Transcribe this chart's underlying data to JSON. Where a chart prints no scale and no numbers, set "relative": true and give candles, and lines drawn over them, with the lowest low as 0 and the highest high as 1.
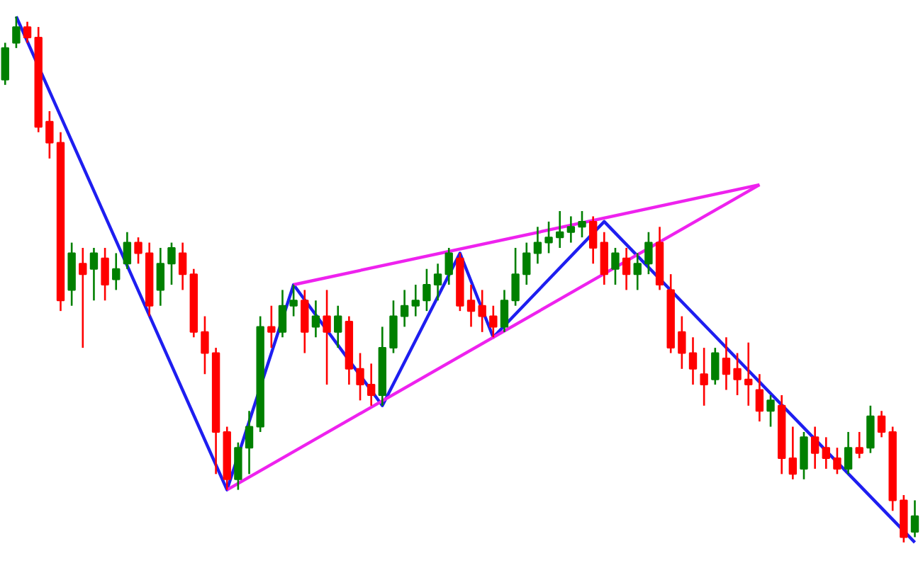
{
  "chart_data": {
    "type": "candlestick",
    "relative": true,
    "categories": [
      null,
      null,
      null,
      null,
      null,
      null,
      null,
      null,
      null,
      null,
      null,
      null,
      null,
      null,
      null,
      null,
      null,
      null,
      null,
      null,
      null,
      null,
      null,
      null,
      null,
      null,
      null,
      null,
      null,
      null,
      null,
      null,
      null,
      null,
      null,
      null,
      null,
      null,
      null,
      null,
      null,
      null,
      null,
      null,
      null,
      null,
      null,
      null,
      null,
      null,
      null,
      null,
      null,
      null,
      null,
      null,
      null,
      null,
      null,
      null,
      null,
      null,
      null,
      null,
      null,
      null,
      null,
      null,
      null,
      null,
      null,
      null,
      null,
      null,
      null,
      null,
      null,
      null,
      null,
      null,
      null,
      null,
      null
    ],
    "ohlc": [
      [
        0.88,
        0.95,
        0.87,
        0.94
      ],
      [
        0.95,
        1.0,
        0.94,
        0.98
      ],
      [
        0.98,
        0.99,
        0.95,
        0.96
      ],
      [
        0.96,
        0.98,
        0.78,
        0.79
      ],
      [
        0.8,
        0.82,
        0.73,
        0.76
      ],
      [
        0.76,
        0.78,
        0.44,
        0.46
      ],
      [
        0.48,
        0.57,
        0.45,
        0.55
      ],
      [
        0.53,
        0.56,
        0.37,
        0.51
      ],
      [
        0.52,
        0.56,
        0.46,
        0.55
      ],
      [
        0.54,
        0.56,
        0.46,
        0.49
      ],
      [
        0.5,
        0.55,
        0.48,
        0.52
      ],
      [
        0.53,
        0.59,
        0.52,
        0.57
      ],
      [
        0.57,
        0.58,
        0.53,
        0.55
      ],
      [
        0.55,
        0.57,
        0.43,
        0.45
      ],
      [
        0.48,
        0.56,
        0.45,
        0.53
      ],
      [
        0.53,
        0.57,
        0.49,
        0.56
      ],
      [
        0.55,
        0.57,
        0.48,
        0.51
      ],
      [
        0.51,
        0.52,
        0.39,
        0.4
      ],
      [
        0.4,
        0.43,
        0.32,
        0.36
      ],
      [
        0.36,
        0.37,
        0.13,
        0.21
      ],
      [
        0.21,
        0.22,
        0.1,
        0.12
      ],
      [
        0.12,
        0.19,
        0.1,
        0.18
      ],
      [
        0.18,
        0.25,
        0.13,
        0.22
      ],
      [
        0.22,
        0.43,
        0.21,
        0.41
      ],
      [
        0.41,
        0.45,
        0.37,
        0.4
      ],
      [
        0.4,
        0.48,
        0.39,
        0.45
      ],
      [
        0.45,
        0.49,
        0.43,
        0.46
      ],
      [
        0.46,
        0.48,
        0.36,
        0.4
      ],
      [
        0.41,
        0.46,
        0.39,
        0.43
      ],
      [
        0.43,
        0.48,
        0.3,
        0.4
      ],
      [
        0.4,
        0.45,
        0.37,
        0.43
      ],
      [
        0.42,
        0.43,
        0.3,
        0.33
      ],
      [
        0.33,
        0.36,
        0.27,
        0.3
      ],
      [
        0.3,
        0.34,
        0.26,
        0.28
      ],
      [
        0.28,
        0.41,
        0.26,
        0.37
      ],
      [
        0.37,
        0.46,
        0.36,
        0.43
      ],
      [
        0.43,
        0.48,
        0.41,
        0.45
      ],
      [
        0.45,
        0.49,
        0.43,
        0.46
      ],
      [
        0.46,
        0.52,
        0.44,
        0.49
      ],
      [
        0.49,
        0.53,
        0.46,
        0.51
      ],
      [
        0.51,
        0.56,
        0.49,
        0.55
      ],
      [
        0.54,
        0.55,
        0.44,
        0.45
      ],
      [
        0.46,
        0.49,
        0.41,
        0.44
      ],
      [
        0.45,
        0.48,
        0.4,
        0.43
      ],
      [
        0.43,
        0.45,
        0.39,
        0.41
      ],
      [
        0.41,
        0.48,
        0.4,
        0.46
      ],
      [
        0.46,
        0.56,
        0.45,
        0.51
      ],
      [
        0.51,
        0.57,
        0.49,
        0.55
      ],
      [
        0.55,
        0.6,
        0.53,
        0.57
      ],
      [
        0.57,
        0.61,
        0.55,
        0.58
      ],
      [
        0.58,
        0.63,
        0.56,
        0.59
      ],
      [
        0.59,
        0.62,
        0.57,
        0.6
      ],
      [
        0.6,
        0.63,
        0.58,
        0.61
      ],
      [
        0.61,
        0.62,
        0.53,
        0.56
      ],
      [
        0.57,
        0.59,
        0.49,
        0.51
      ],
      [
        0.52,
        0.56,
        0.49,
        0.55
      ],
      [
        0.54,
        0.56,
        0.48,
        0.51
      ],
      [
        0.51,
        0.55,
        0.48,
        0.53
      ],
      [
        0.53,
        0.59,
        0.51,
        0.57
      ],
      [
        0.57,
        0.6,
        0.48,
        0.49
      ],
      [
        0.48,
        0.51,
        0.36,
        0.37
      ],
      [
        0.4,
        0.43,
        0.33,
        0.36
      ],
      [
        0.36,
        0.39,
        0.3,
        0.33
      ],
      [
        0.32,
        0.37,
        0.26,
        0.3
      ],
      [
        0.31,
        0.37,
        0.3,
        0.36
      ],
      [
        0.35,
        0.39,
        0.29,
        0.32
      ],
      [
        0.33,
        0.36,
        0.28,
        0.31
      ],
      [
        0.31,
        0.38,
        0.26,
        0.3
      ],
      [
        0.29,
        0.32,
        0.23,
        0.25
      ],
      [
        0.25,
        0.28,
        0.22,
        0.27
      ],
      [
        0.26,
        0.28,
        0.13,
        0.16
      ],
      [
        0.16,
        0.22,
        0.12,
        0.13
      ],
      [
        0.14,
        0.21,
        0.12,
        0.2
      ],
      [
        0.2,
        0.22,
        0.14,
        0.17
      ],
      [
        0.18,
        0.2,
        0.14,
        0.16
      ],
      [
        0.16,
        0.18,
        0.13,
        0.14
      ],
      [
        0.14,
        0.21,
        0.13,
        0.18
      ],
      [
        0.18,
        0.21,
        0.16,
        0.17
      ],
      [
        0.18,
        0.26,
        0.17,
        0.24
      ],
      [
        0.24,
        0.25,
        0.2,
        0.21
      ],
      [
        0.21,
        0.22,
        0.06,
        0.08
      ],
      [
        0.08,
        0.09,
        0.0,
        0.01
      ],
      [
        0.02,
        0.08,
        0.01,
        0.05
      ]
    ],
    "colors": [
      "#008000",
      "#008000",
      "#ff0000",
      "#ff0000",
      "#ff0000",
      "#ff0000",
      "#008000",
      "#ff0000",
      "#008000",
      "#ff0000",
      "#008000",
      "#008000",
      "#ff0000",
      "#ff0000",
      "#008000",
      "#008000",
      "#ff0000",
      "#ff0000",
      "#ff0000",
      "#ff0000",
      "#ff0000",
      "#008000",
      "#008000",
      "#008000",
      "#ff0000",
      "#008000",
      "#008000",
      "#ff0000",
      "#008000",
      "#ff0000",
      "#008000",
      "#ff0000",
      "#ff0000",
      "#ff0000",
      "#008000",
      "#008000",
      "#008000",
      "#008000",
      "#008000",
      "#008000",
      "#008000",
      "#ff0000",
      "#ff0000",
      "#ff0000",
      "#ff0000",
      "#008000",
      "#008000",
      "#008000",
      "#008000",
      "#008000",
      "#008000",
      "#008000",
      "#008000",
      "#ff0000",
      "#ff0000",
      "#008000",
      "#ff0000",
      "#008000",
      "#008000",
      "#ff0000",
      "#ff0000",
      "#ff0000",
      "#ff0000",
      "#ff0000",
      "#008000",
      "#ff0000",
      "#ff0000",
      "#ff0000",
      "#ff0000",
      "#008000",
      "#ff0000",
      "#ff0000",
      "#008000",
      "#ff0000",
      "#ff0000",
      "#ff0000",
      "#008000",
      "#ff0000",
      "#008000",
      "#ff0000",
      "#ff0000",
      "#ff0000",
      "#008000"
    ],
    "series": [
      {
        "type": "line",
        "color": "#1e1ef0",
        "values": [
          null,
          1.0,
          null,
          null,
          null,
          null,
          null,
          null,
          null,
          null,
          null,
          null,
          null,
          null,
          null,
          null,
          null,
          null,
          null,
          null,
          0.1,
          null,
          null,
          null,
          null,
          null,
          0.49,
          null,
          null,
          null,
          null,
          null,
          null,
          null,
          0.26,
          null,
          null,
          null,
          null,
          null,
          null,
          0.55,
          null,
          null,
          0.39,
          null,
          null,
          null,
          null,
          null,
          null,
          null,
          null,
          null,
          0.61,
          null,
          null,
          null,
          null,
          null,
          null,
          null,
          null,
          null,
          null,
          null,
          null,
          null,
          null,
          null,
          null,
          null,
          null,
          null,
          null,
          null,
          null,
          null,
          null,
          null,
          null,
          null,
          0.0
        ]
      },
      {
        "type": "line",
        "color": "#ee22ee",
        "values": [
          null,
          null,
          null,
          null,
          null,
          null,
          null,
          null,
          null,
          null,
          null,
          null,
          null,
          null,
          null,
          null,
          null,
          null,
          null,
          null,
          null,
          null,
          null,
          null,
          null,
          null,
          0.49,
          null,
          null,
          null,
          null,
          null,
          null,
          null,
          null,
          null,
          null,
          null,
          null,
          null,
          null,
          null,
          null,
          null,
          null,
          null,
          null,
          null,
          null,
          null,
          null,
          null,
          null,
          null,
          null,
          null,
          null,
          null,
          null,
          null,
          null,
          null,
          null,
          null,
          null,
          null,
          null,
          null,
          0.68,
          null,
          null,
          null,
          null,
          null,
          null,
          null,
          null,
          null,
          null,
          null,
          null,
          null,
          null
        ]
      },
      {
        "type": "line",
        "color": "#ee22ee",
        "values": [
          null,
          null,
          null,
          null,
          null,
          null,
          null,
          null,
          null,
          null,
          null,
          null,
          null,
          null,
          null,
          null,
          null,
          null,
          null,
          null,
          0.1,
          null,
          null,
          null,
          null,
          null,
          null,
          null,
          null,
          null,
          null,
          null,
          null,
          null,
          null,
          null,
          null,
          null,
          null,
          null,
          null,
          null,
          null,
          null,
          null,
          null,
          null,
          null,
          null,
          null,
          null,
          null,
          null,
          null,
          null,
          null,
          null,
          null,
          null,
          null,
          null,
          null,
          null,
          null,
          null,
          null,
          null,
          null,
          0.68,
          null,
          null,
          null,
          null,
          null,
          null,
          null,
          null,
          null,
          null,
          null,
          null,
          null,
          null
        ]
      }
    ],
    "grid": false
  }
}
